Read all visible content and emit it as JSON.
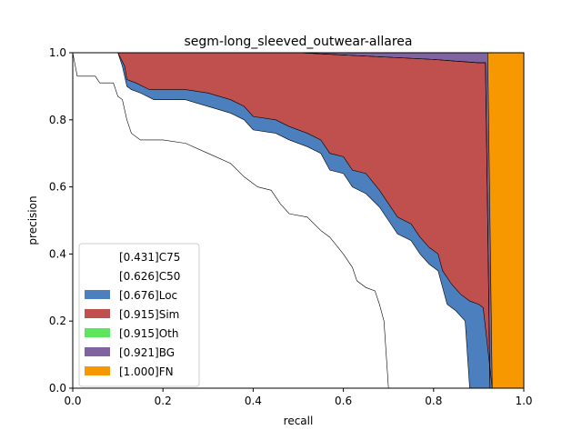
{
  "chart_data": {
    "type": "area",
    "title": "segm-long_sleeved_outwear-allarea",
    "xlabel": "recall",
    "ylabel": "precision",
    "xlim": [
      0,
      1
    ],
    "ylim": [
      0,
      1
    ],
    "x_ticks": [
      "0.0",
      "0.2",
      "0.4",
      "0.6",
      "0.8",
      "1.0"
    ],
    "y_ticks": [
      "0.0",
      "0.2",
      "0.4",
      "0.6",
      "0.8",
      "1.0"
    ],
    "grid": false,
    "legend_position": "lower-left",
    "series": [
      {
        "name": "[0.431]C75",
        "color": "#ffffff",
        "points": [
          [
            0,
            1
          ],
          [
            0.01,
            0.93
          ],
          [
            0.05,
            0.93
          ],
          [
            0.06,
            0.91
          ],
          [
            0.09,
            0.91
          ],
          [
            0.1,
            0.87
          ],
          [
            0.11,
            0.86
          ],
          [
            0.12,
            0.8
          ],
          [
            0.13,
            0.76
          ],
          [
            0.15,
            0.74
          ],
          [
            0.2,
            0.74
          ],
          [
            0.25,
            0.73
          ],
          [
            0.3,
            0.7
          ],
          [
            0.35,
            0.67
          ],
          [
            0.38,
            0.63
          ],
          [
            0.41,
            0.6
          ],
          [
            0.44,
            0.59
          ],
          [
            0.46,
            0.55
          ],
          [
            0.48,
            0.52
          ],
          [
            0.52,
            0.51
          ],
          [
            0.55,
            0.47
          ],
          [
            0.57,
            0.45
          ],
          [
            0.6,
            0.4
          ],
          [
            0.62,
            0.36
          ],
          [
            0.63,
            0.32
          ],
          [
            0.65,
            0.3
          ],
          [
            0.67,
            0.29
          ],
          [
            0.68,
            0.25
          ],
          [
            0.69,
            0.2
          ],
          [
            0.695,
            0.1
          ],
          [
            0.7,
            0.0
          ]
        ]
      },
      {
        "name": "[0.626]C50",
        "color": "#ffffff",
        "points": [
          [
            0,
            1
          ],
          [
            0.1,
            1.0
          ],
          [
            0.11,
            0.96
          ],
          [
            0.12,
            0.9
          ],
          [
            0.13,
            0.89
          ],
          [
            0.15,
            0.88
          ],
          [
            0.18,
            0.86
          ],
          [
            0.25,
            0.86
          ],
          [
            0.3,
            0.84
          ],
          [
            0.35,
            0.82
          ],
          [
            0.38,
            0.8
          ],
          [
            0.4,
            0.77
          ],
          [
            0.45,
            0.76
          ],
          [
            0.48,
            0.74
          ],
          [
            0.52,
            0.72
          ],
          [
            0.55,
            0.7
          ],
          [
            0.57,
            0.65
          ],
          [
            0.6,
            0.64
          ],
          [
            0.62,
            0.6
          ],
          [
            0.65,
            0.58
          ],
          [
            0.68,
            0.54
          ],
          [
            0.7,
            0.5
          ],
          [
            0.72,
            0.46
          ],
          [
            0.75,
            0.44
          ],
          [
            0.77,
            0.4
          ],
          [
            0.79,
            0.37
          ],
          [
            0.81,
            0.35
          ],
          [
            0.82,
            0.3
          ],
          [
            0.83,
            0.25
          ],
          [
            0.85,
            0.23
          ],
          [
            0.87,
            0.2
          ],
          [
            0.875,
            0.1
          ],
          [
            0.88,
            0.0
          ]
        ]
      },
      {
        "name": "[0.676]Loc",
        "color": "#4c7fbd",
        "points": [
          [
            0,
            1
          ],
          [
            0.1,
            1.0
          ],
          [
            0.115,
            0.96
          ],
          [
            0.12,
            0.92
          ],
          [
            0.14,
            0.91
          ],
          [
            0.17,
            0.89
          ],
          [
            0.25,
            0.89
          ],
          [
            0.3,
            0.88
          ],
          [
            0.35,
            0.86
          ],
          [
            0.38,
            0.84
          ],
          [
            0.4,
            0.81
          ],
          [
            0.45,
            0.8
          ],
          [
            0.48,
            0.78
          ],
          [
            0.52,
            0.76
          ],
          [
            0.55,
            0.74
          ],
          [
            0.57,
            0.7
          ],
          [
            0.6,
            0.69
          ],
          [
            0.62,
            0.65
          ],
          [
            0.65,
            0.64
          ],
          [
            0.68,
            0.59
          ],
          [
            0.7,
            0.55
          ],
          [
            0.72,
            0.51
          ],
          [
            0.75,
            0.49
          ],
          [
            0.77,
            0.45
          ],
          [
            0.79,
            0.42
          ],
          [
            0.81,
            0.4
          ],
          [
            0.82,
            0.35
          ],
          [
            0.84,
            0.31
          ],
          [
            0.86,
            0.28
          ],
          [
            0.88,
            0.26
          ],
          [
            0.9,
            0.25
          ],
          [
            0.91,
            0.24
          ],
          [
            0.92,
            0.12
          ],
          [
            0.93,
            0.0
          ]
        ]
      },
      {
        "name": "[0.915]Sim",
        "color": "#c0504d",
        "points": [
          [
            0,
            1
          ],
          [
            0.5,
            1.0
          ],
          [
            0.8,
            0.98
          ],
          [
            0.9,
            0.97
          ],
          [
            0.91,
            0.97
          ],
          [
            0.915,
            0.97
          ],
          [
            0.92,
            0.5
          ],
          [
            0.925,
            0.0
          ]
        ]
      },
      {
        "name": "[0.915]Oth",
        "color": "#5ee55e",
        "points": [
          [
            0,
            1
          ],
          [
            0.5,
            1.0
          ],
          [
            0.8,
            0.98
          ],
          [
            0.9,
            0.97
          ],
          [
            0.91,
            0.97
          ],
          [
            0.915,
            0.97
          ],
          [
            0.92,
            0.5
          ],
          [
            0.925,
            0.0
          ]
        ]
      },
      {
        "name": "[0.921]BG",
        "color": "#8064a2",
        "points": [
          [
            0,
            1
          ],
          [
            0.92,
            1.0
          ],
          [
            0.925,
            0.5
          ],
          [
            0.93,
            0.0
          ]
        ]
      },
      {
        "name": "[1.000]FN",
        "color": "#f79800",
        "points": [
          [
            0,
            1
          ],
          [
            1.0,
            1.0
          ],
          [
            1.0,
            0.0
          ]
        ]
      }
    ]
  }
}
